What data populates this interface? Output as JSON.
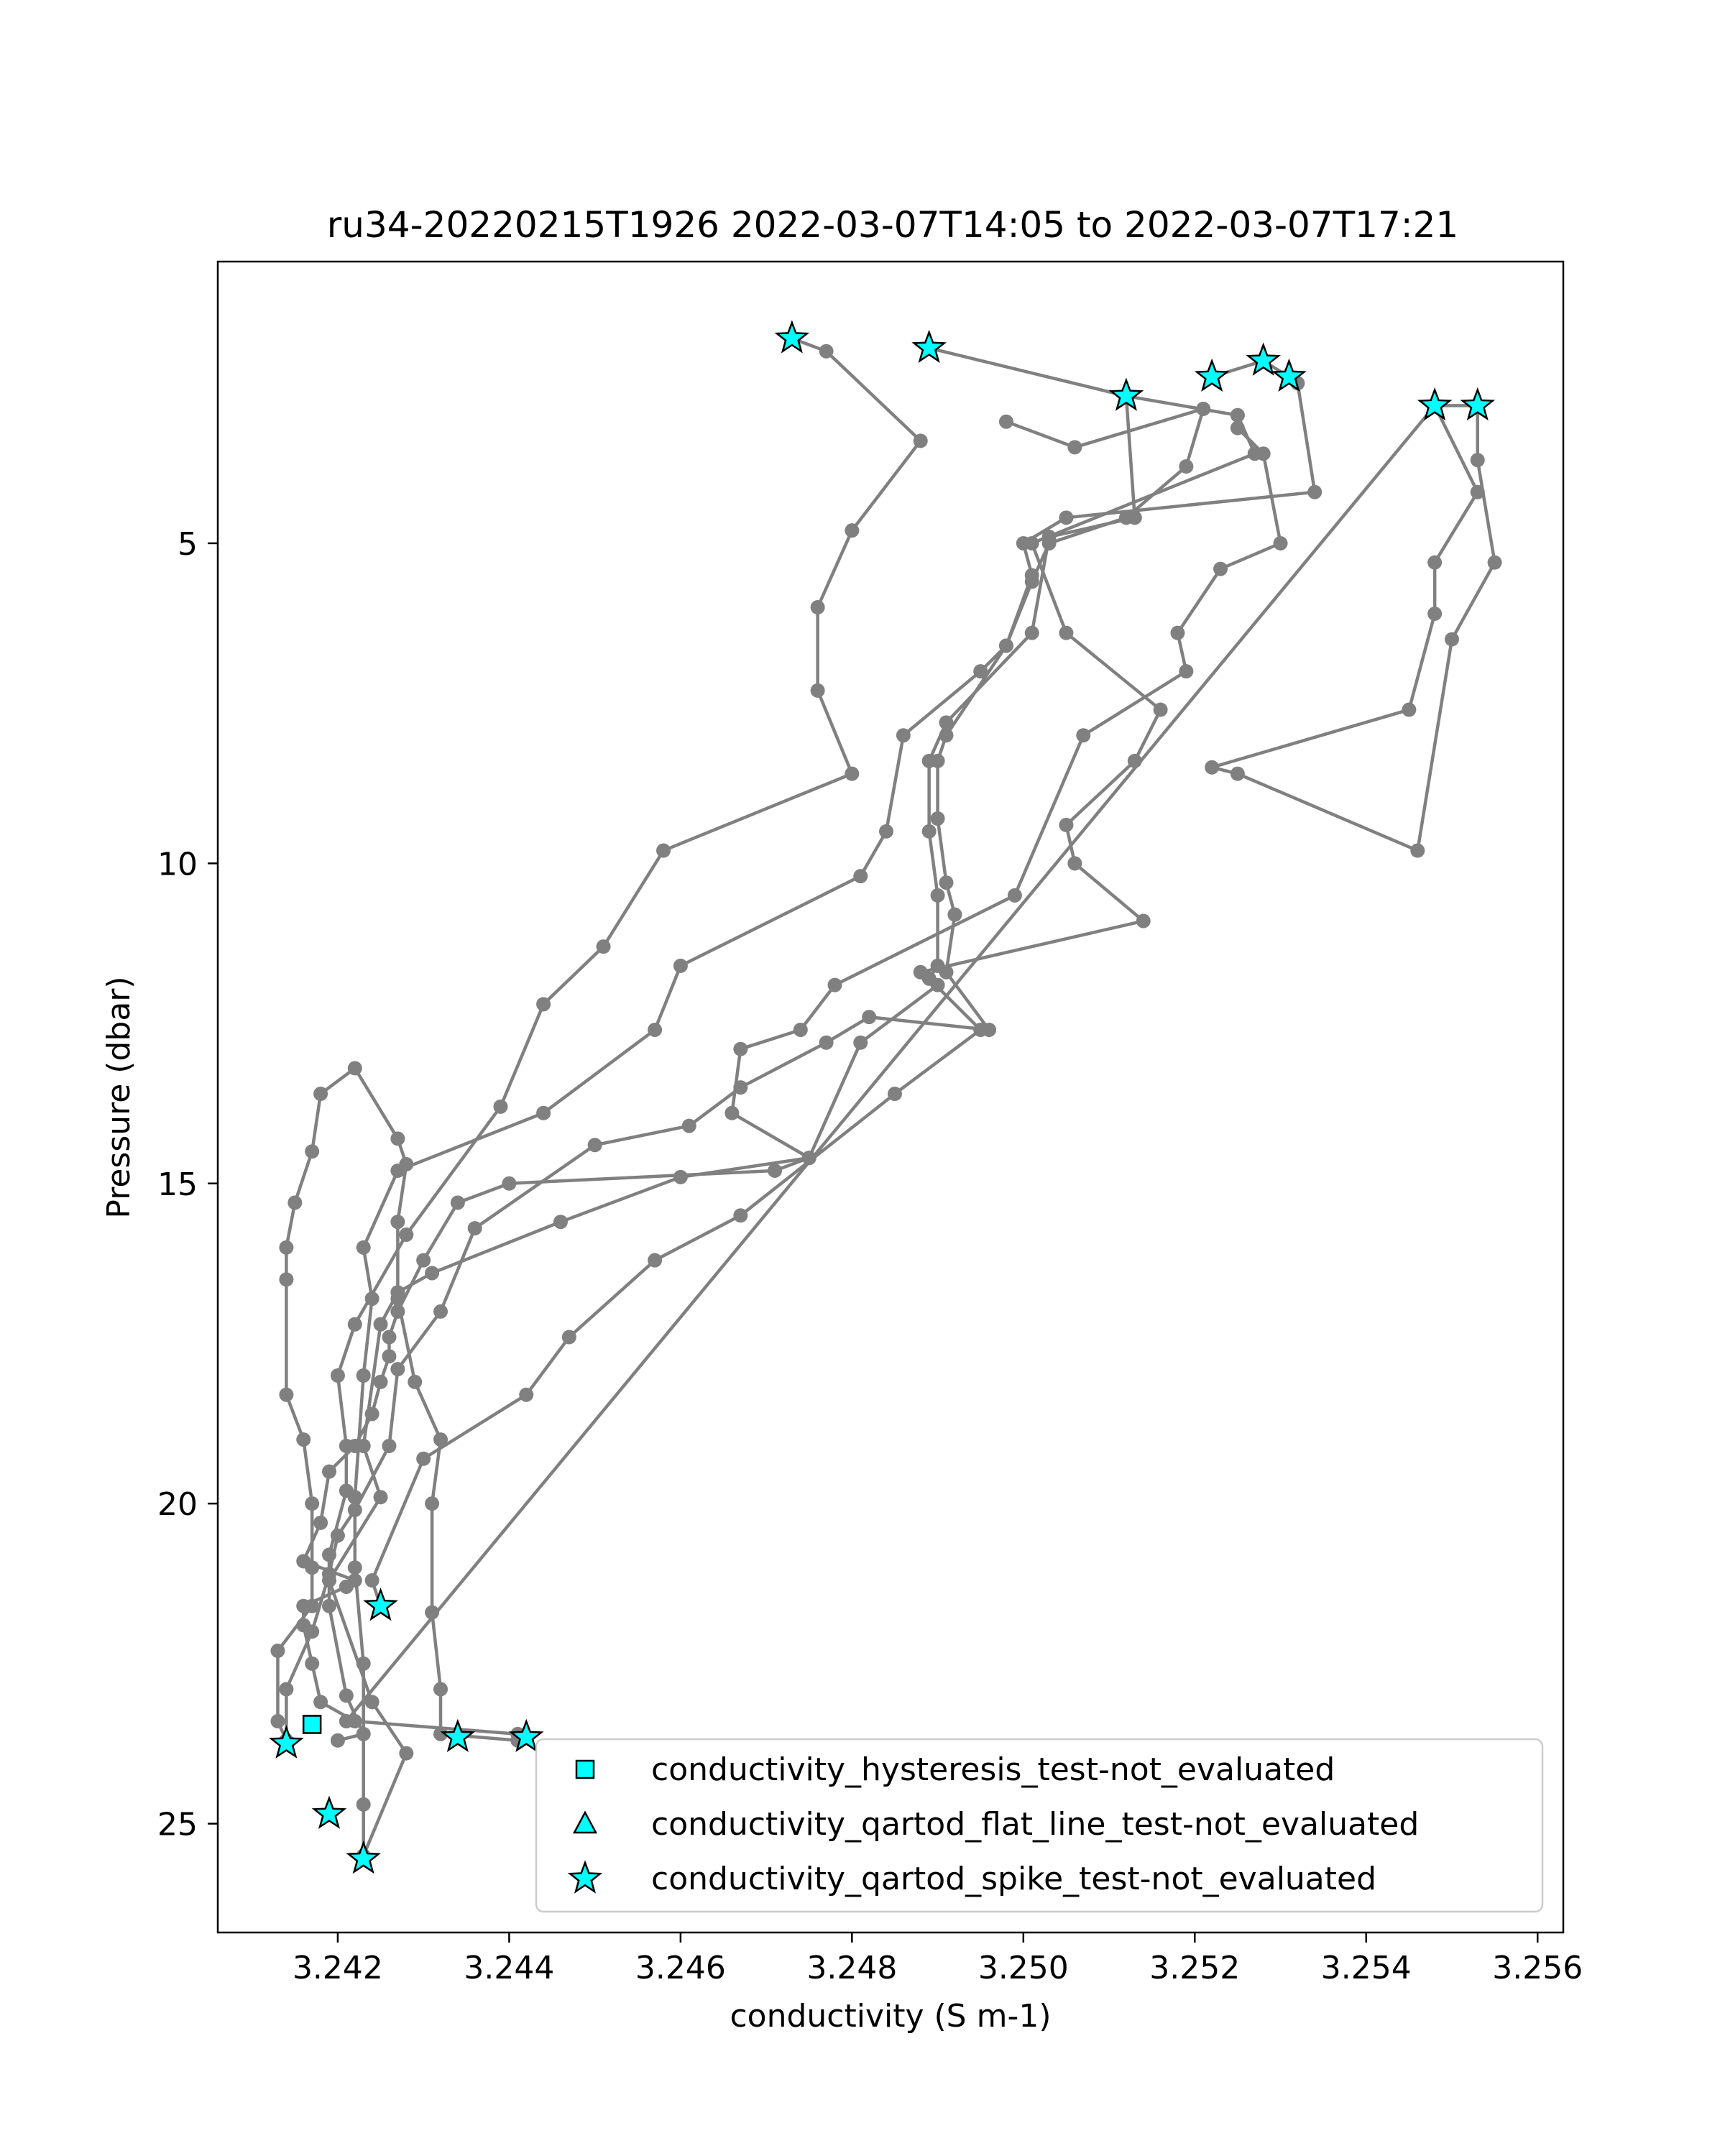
{
  "chart_data": {
    "type": "line",
    "title": "ru34-20220215T1926 2022-03-07T14:05 to 2022-03-07T17:21",
    "xlabel": "conductivity (S m-1)",
    "ylabel": "Pressure (dbar)",
    "xlim": [
      3.2406,
      3.2563
    ],
    "ylim": [
      26.7,
      0.6
    ],
    "y_inverted": true,
    "xticks": [
      3.242,
      3.244,
      3.246,
      3.248,
      3.25,
      3.252,
      3.254,
      3.256
    ],
    "xtick_labels": [
      "3.242",
      "3.244",
      "3.246",
      "3.248",
      "3.250",
      "3.252",
      "3.254",
      "3.256"
    ],
    "yticks": [
      5,
      10,
      15,
      20,
      25
    ],
    "ytick_labels": [
      "5",
      "10",
      "15",
      "20",
      "25"
    ],
    "grid": false,
    "legend_position": "lower-right",
    "line_color": "#808080",
    "marker_color": "#808080",
    "flag_color": "#00ffff",
    "flag_edge_color": "#000000",
    "series": [
      {
        "points": [
          [
            3.2473,
            1.8
          ],
          [
            3.2477,
            2.0
          ],
          [
            3.2488,
            3.4
          ],
          [
            3.248,
            4.8
          ],
          [
            3.2476,
            6.0
          ],
          [
            3.2476,
            7.3
          ],
          [
            3.248,
            8.6
          ],
          [
            3.2458,
            9.8
          ],
          [
            3.2451,
            11.3
          ],
          [
            3.2444,
            12.2
          ],
          [
            3.2439,
            13.8
          ],
          [
            3.2428,
            15.8
          ],
          [
            3.2422,
            17.2
          ],
          [
            3.242,
            18.0
          ],
          [
            3.2421,
            19.1
          ],
          [
            3.2421,
            19.8
          ],
          [
            3.2419,
            20.8
          ],
          [
            3.2419,
            21.6
          ],
          [
            3.2421,
            23.0
          ],
          [
            3.2423,
            23.6
          ],
          [
            3.242,
            23.7
          ]
        ]
      },
      {
        "points": [
          [
            3.2489,
            1.95
          ],
          [
            3.2512,
            2.7
          ],
          [
            3.2513,
            4.6
          ],
          [
            3.2503,
            4.9
          ],
          [
            3.2501,
            6.4
          ],
          [
            3.2491,
            7.8
          ],
          [
            3.2489,
            8.4
          ],
          [
            3.2489,
            9.5
          ],
          [
            3.249,
            10.5
          ],
          [
            3.249,
            11.6
          ],
          [
            3.2489,
            11.8
          ],
          [
            3.2495,
            12.6
          ],
          [
            3.2485,
            13.6
          ],
          [
            3.2467,
            15.5
          ],
          [
            3.2457,
            16.2
          ],
          [
            3.2447,
            17.4
          ],
          [
            3.2442,
            18.3
          ],
          [
            3.243,
            19.3
          ],
          [
            3.2424,
            21.2
          ],
          [
            3.2425,
            21.6
          ]
        ]
      },
      {
        "points": [
          [
            3.2522,
            2.4
          ],
          [
            3.2528,
            2.15
          ],
          [
            3.2531,
            2.4
          ],
          [
            3.2532,
            2.5
          ],
          [
            3.2534,
            4.2
          ],
          [
            3.2505,
            4.6
          ],
          [
            3.25,
            5.0
          ],
          [
            3.2501,
            5.5
          ],
          [
            3.2498,
            6.6
          ],
          [
            3.2495,
            7.0
          ],
          [
            3.2486,
            8.0
          ],
          [
            3.2484,
            9.5
          ],
          [
            3.2481,
            10.2
          ],
          [
            3.246,
            11.6
          ],
          [
            3.2457,
            12.6
          ],
          [
            3.2444,
            13.9
          ],
          [
            3.2427,
            14.8
          ],
          [
            3.2423,
            16.0
          ],
          [
            3.2424,
            16.8
          ],
          [
            3.2423,
            18.0
          ],
          [
            3.2422,
            19.9
          ],
          [
            3.2422,
            21.0
          ],
          [
            3.2423,
            22.5
          ],
          [
            3.2423,
            24.7
          ],
          [
            3.2423,
            25.5
          ]
        ]
      },
      {
        "points": [
          [
            3.2512,
            2.7
          ],
          [
            3.2525,
            3.0
          ],
          [
            3.2527,
            3.6
          ],
          [
            3.2501,
            5.0
          ],
          [
            3.2505,
            6.4
          ],
          [
            3.2516,
            7.6
          ],
          [
            3.2513,
            8.4
          ],
          [
            3.2505,
            9.4
          ],
          [
            3.2506,
            10.0
          ],
          [
            3.2514,
            10.9
          ],
          [
            3.2488,
            11.7
          ],
          [
            3.249,
            11.9
          ],
          [
            3.2481,
            12.8
          ],
          [
            3.2475,
            14.6
          ],
          [
            3.246,
            14.9
          ],
          [
            3.2446,
            15.6
          ],
          [
            3.2431,
            16.4
          ],
          [
            3.2427,
            16.7
          ],
          [
            3.2425,
            17.2
          ],
          [
            3.2423,
            19.1
          ],
          [
            3.2425,
            19.9
          ],
          [
            3.2419,
            21.2
          ],
          [
            3.2424,
            23.1
          ],
          [
            3.2428,
            23.9
          ],
          [
            3.2423,
            25.5
          ]
        ]
      },
      {
        "points": [
          [
            3.2548,
            2.85
          ],
          [
            3.2553,
            2.85
          ],
          [
            3.2553,
            3.7
          ],
          [
            3.2555,
            5.3
          ],
          [
            3.255,
            6.5
          ],
          [
            3.2546,
            9.8
          ],
          [
            3.2525,
            8.6
          ],
          [
            3.2522,
            8.5
          ],
          [
            3.2545,
            7.6
          ],
          [
            3.2548,
            6.1
          ],
          [
            3.2548,
            5.3
          ],
          [
            3.2553,
            4.2
          ],
          [
            3.2548,
            2.85
          ],
          [
            3.2421,
            23.4
          ]
        ]
      },
      {
        "points": [
          [
            3.2525,
            3.0
          ],
          [
            3.2525,
            3.2
          ],
          [
            3.2528,
            3.6
          ],
          [
            3.253,
            5.0
          ],
          [
            3.2523,
            5.4
          ],
          [
            3.2518,
            6.4
          ],
          [
            3.2519,
            7.0
          ],
          [
            3.2507,
            8.0
          ],
          [
            3.2499,
            10.5
          ],
          [
            3.2478,
            11.9
          ],
          [
            3.2474,
            12.6
          ],
          [
            3.2467,
            12.9
          ],
          [
            3.2466,
            13.9
          ],
          [
            3.2475,
            14.6
          ],
          [
            3.2471,
            14.8
          ],
          [
            3.244,
            15.0
          ],
          [
            3.2434,
            15.3
          ],
          [
            3.243,
            16.2
          ],
          [
            3.2427,
            17.0
          ],
          [
            3.2426,
            17.4
          ],
          [
            3.2426,
            17.7
          ],
          [
            3.2425,
            18.1
          ],
          [
            3.2424,
            18.6
          ],
          [
            3.2422,
            19.1
          ],
          [
            3.2419,
            19.5
          ],
          [
            3.2418,
            20.3
          ],
          [
            3.2416,
            20.9
          ],
          [
            3.2422,
            21.2
          ],
          [
            3.2421,
            21.3
          ],
          [
            3.2416,
            21.6
          ],
          [
            3.2416,
            21.9
          ],
          [
            3.2417,
            22.5
          ],
          [
            3.2418,
            23.1
          ],
          [
            3.2422,
            23.4
          ],
          [
            3.2441,
            23.6
          ],
          [
            3.2441,
            23.7
          ],
          [
            3.2432,
            23.6
          ],
          [
            3.2432,
            22.9
          ],
          [
            3.2431,
            21.7
          ],
          [
            3.2431,
            20.0
          ],
          [
            3.2432,
            19.0
          ],
          [
            3.2429,
            18.1
          ],
          [
            3.2427,
            16.8
          ],
          [
            3.2427,
            15.6
          ],
          [
            3.2428,
            14.7
          ],
          [
            3.2427,
            14.3
          ],
          [
            3.2422,
            13.2
          ],
          [
            3.2418,
            13.6
          ],
          [
            3.2417,
            14.5
          ],
          [
            3.2415,
            15.3
          ],
          [
            3.2414,
            16.0
          ],
          [
            3.2414,
            16.5
          ],
          [
            3.2414,
            18.3
          ],
          [
            3.2416,
            19.0
          ],
          [
            3.2417,
            20.0
          ],
          [
            3.2417,
            21.0
          ],
          [
            3.2417,
            21.6
          ],
          [
            3.2413,
            22.3
          ],
          [
            3.2413,
            23.4
          ],
          [
            3.2414,
            23.7
          ]
        ]
      },
      {
        "points": [
          [
            3.2498,
            3.1
          ],
          [
            3.2506,
            3.5
          ],
          [
            3.2521,
            2.9
          ],
          [
            3.2519,
            3.8
          ],
          [
            3.2512,
            4.6
          ],
          [
            3.2503,
            5.0
          ],
          [
            3.2501,
            5.6
          ],
          [
            3.2498,
            6.6
          ],
          [
            3.2491,
            8.0
          ],
          [
            3.249,
            8.4
          ],
          [
            3.249,
            9.3
          ],
          [
            3.2491,
            10.3
          ],
          [
            3.2492,
            10.8
          ],
          [
            3.2491,
            11.7
          ],
          [
            3.2496,
            12.6
          ],
          [
            3.2482,
            12.4
          ],
          [
            3.2477,
            12.8
          ],
          [
            3.2467,
            13.5
          ],
          [
            3.2461,
            14.1
          ],
          [
            3.245,
            14.4
          ],
          [
            3.2436,
            15.7
          ],
          [
            3.2432,
            17.0
          ],
          [
            3.2427,
            17.9
          ],
          [
            3.2426,
            19.1
          ],
          [
            3.2422,
            20.1
          ],
          [
            3.242,
            20.5
          ],
          [
            3.2419,
            21.1
          ],
          [
            3.2417,
            22.0
          ],
          [
            3.2414,
            22.9
          ],
          [
            3.2414,
            23.7
          ]
        ]
      }
    ],
    "flagged_points": [
      {
        "flag": "hysteresis",
        "x": 3.2417,
        "y": 23.45
      },
      {
        "flag": "spike",
        "x": 3.2473,
        "y": 1.8
      },
      {
        "flag": "spike",
        "x": 3.2489,
        "y": 1.95
      },
      {
        "flag": "spike",
        "x": 3.2512,
        "y": 2.7
      },
      {
        "flag": "spike",
        "x": 3.2522,
        "y": 2.4
      },
      {
        "flag": "spike",
        "x": 3.2528,
        "y": 2.15
      },
      {
        "flag": "spike",
        "x": 3.2531,
        "y": 2.4
      },
      {
        "flag": "spike",
        "x": 3.2548,
        "y": 2.85
      },
      {
        "flag": "spike",
        "x": 3.2553,
        "y": 2.85
      },
      {
        "flag": "spike",
        "x": 3.2425,
        "y": 21.6
      },
      {
        "flag": "spike",
        "x": 3.2414,
        "y": 23.75
      },
      {
        "flag": "spike",
        "x": 3.2434,
        "y": 23.65
      },
      {
        "flag": "spike",
        "x": 3.2442,
        "y": 23.65
      },
      {
        "flag": "spike",
        "x": 3.2419,
        "y": 24.85
      },
      {
        "flag": "spike",
        "x": 3.2423,
        "y": 25.55
      }
    ],
    "legend": [
      {
        "label": "conductivity_hysteresis_test-not_evaluated",
        "marker": "square",
        "flag": "hysteresis"
      },
      {
        "label": "conductivity_qartod_flat_line_test-not_evaluated",
        "marker": "triangle",
        "flag": "flat_line"
      },
      {
        "label": "conductivity_qartod_spike_test-not_evaluated",
        "marker": "star",
        "flag": "spike"
      }
    ]
  }
}
